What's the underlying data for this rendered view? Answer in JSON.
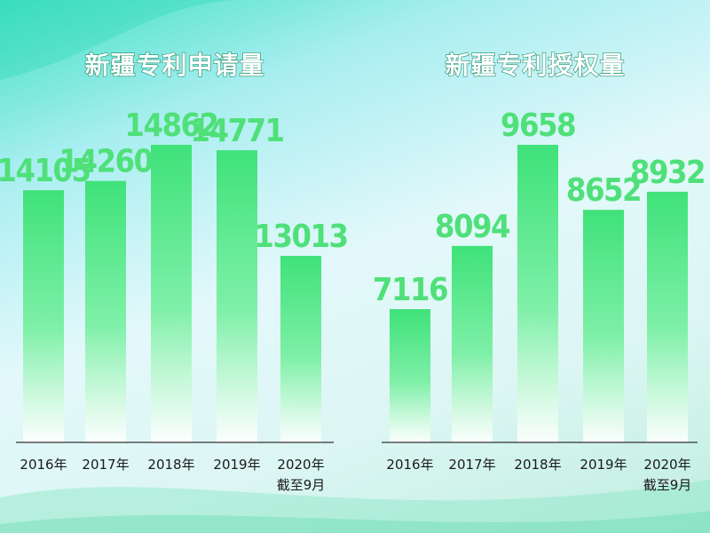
{
  "chart_data": [
    {
      "type": "bar",
      "title": "新疆专利申请量",
      "categories": [
        "2016年",
        "2017年",
        "2018年",
        "2019年",
        "2020年截至9月"
      ],
      "values": [
        14105,
        14260,
        14862,
        14771,
        13013
      ],
      "value_labels": [
        "14105",
        "14260",
        "14862",
        "14771",
        "13013"
      ],
      "xlabel": "",
      "ylabel": "",
      "grid": false,
      "legend": "none"
    },
    {
      "type": "bar",
      "title": "新疆专利授权量",
      "categories": [
        "2016年",
        "2017年",
        "2018年",
        "2019年",
        "2020年截至9月"
      ],
      "values": [
        7116,
        8094,
        9658,
        8652,
        8932
      ],
      "value_labels": [
        "7116",
        "8094",
        "9658",
        "8652",
        "8932"
      ],
      "xlabel": "",
      "ylabel": "",
      "grid": false,
      "legend": "none"
    }
  ],
  "colors": {
    "bar_top": "#3fe27a",
    "bar_bottom": "#ffffff",
    "value_label": "#4fe07a",
    "title_fill": "#ffffff",
    "title_stroke": "#1f8f6a"
  },
  "category_lines": [
    [
      "2016年"
    ],
    [
      "2017年"
    ],
    [
      "2018年"
    ],
    [
      "2019年"
    ],
    [
      "2020年",
      "截至9月"
    ]
  ]
}
